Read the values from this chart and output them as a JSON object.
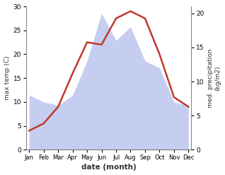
{
  "months": [
    "Jan",
    "Feb",
    "Mar",
    "Apr",
    "May",
    "Jun",
    "Jul",
    "Aug",
    "Sep",
    "Oct",
    "Nov",
    "Dec"
  ],
  "temp": [
    4.0,
    5.5,
    9.0,
    16.0,
    22.5,
    22.0,
    27.5,
    29.0,
    27.5,
    20.0,
    11.0,
    9.0
  ],
  "precip": [
    8.0,
    7.0,
    6.5,
    8.0,
    13.0,
    20.0,
    16.0,
    18.0,
    13.0,
    12.0,
    7.0,
    6.5
  ],
  "temp_color": "#c0392b",
  "precip_fill_color": "#c5cef0",
  "precip_edge_color": "#c5cef0",
  "temp_ylim": [
    0,
    30
  ],
  "precip_ylim": [
    0,
    21
  ],
  "temp_yticks": [
    0,
    5,
    10,
    15,
    20,
    25,
    30
  ],
  "precip_yticks": [
    0,
    5,
    10,
    15,
    20
  ],
  "xlabel": "date (month)",
  "ylabel_left": "max temp (C)",
  "ylabel_right": "med. precipitation\n(kg/m2)",
  "temp_linewidth": 1.8,
  "background_color": "#ffffff"
}
